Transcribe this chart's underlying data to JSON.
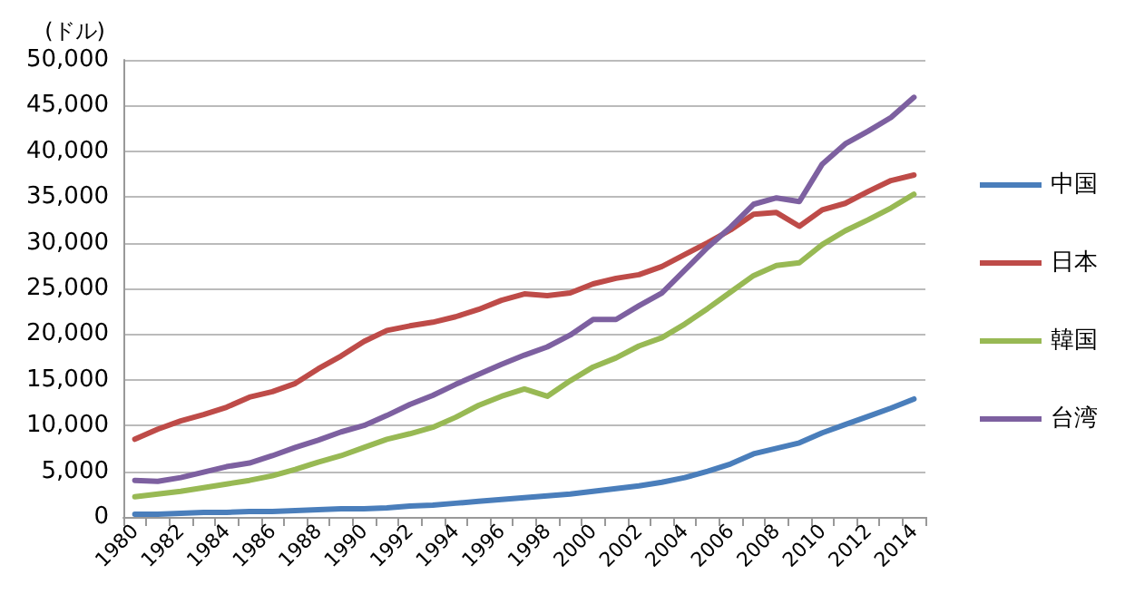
{
  "chart_data": {
    "type": "line",
    "ylabel": "(ドル)",
    "categories": [
      "1980",
      null,
      "1982",
      null,
      "1984",
      null,
      "1986",
      null,
      "1988",
      null,
      "1990",
      null,
      "1992",
      null,
      "1994",
      null,
      "1996",
      null,
      "1998",
      null,
      "2000",
      null,
      "2002",
      null,
      "2004",
      null,
      "2006",
      null,
      "2008",
      null,
      "2010",
      null,
      "2012",
      null,
      "2014"
    ],
    "series": [
      {
        "name": "中国",
        "color": "#4a7ebb",
        "values": [
          300,
          300,
          400,
          500,
          500,
          600,
          600,
          700,
          800,
          900,
          900,
          1000,
          1200,
          1300,
          1500,
          1700,
          1900,
          2100,
          2300,
          2500,
          2800,
          3100,
          3400,
          3800,
          4300,
          5000,
          5800,
          6900,
          7500,
          8100,
          9200,
          10100,
          11000,
          11900,
          12900
        ]
      },
      {
        "name": "日本",
        "color": "#be4b48",
        "values": [
          8500,
          9600,
          10500,
          11200,
          12000,
          13100,
          13700,
          14600,
          16200,
          17600,
          19200,
          20400,
          20900,
          21300,
          21900,
          22700,
          23700,
          24400,
          24200,
          24500,
          25500,
          26100,
          26500,
          27400,
          28700,
          30000,
          31400,
          33100,
          33300,
          31800,
          33600,
          34300,
          35600,
          36800,
          37400
        ]
      },
      {
        "name": "韓国",
        "color": "#98b954",
        "values": [
          2200,
          2500,
          2800,
          3200,
          3600,
          4000,
          4500,
          5200,
          6000,
          6700,
          7600,
          8500,
          9100,
          9800,
          10900,
          12200,
          13200,
          14000,
          13200,
          14900,
          16400,
          17400,
          18700,
          19600,
          21100,
          22800,
          24600,
          26400,
          27500,
          27800,
          29800,
          31300,
          32500,
          33800,
          35300
        ]
      },
      {
        "name": "台湾",
        "color": "#7d60a0",
        "values": [
          4000,
          3900,
          4300,
          4900,
          5500,
          5900,
          6700,
          7600,
          8400,
          9300,
          10000,
          11100,
          12300,
          13300,
          14500,
          15600,
          16700,
          17700,
          18600,
          19900,
          21600,
          21600,
          23100,
          24500,
          27000,
          29500,
          31700,
          34200,
          34900,
          34500,
          38600,
          40800,
          42200,
          43700,
          45900
        ]
      }
    ],
    "ylim": [
      0,
      50000
    ],
    "yticks": [
      0,
      {
        "value": 5000,
        "label": "5,000"
      },
      {
        "value": 10000,
        "label": "10,000"
      },
      {
        "value": 15000,
        "label": "15,000"
      },
      {
        "value": 20000,
        "label": "20,000"
      },
      {
        "value": 25000,
        "label": "25,000"
      },
      {
        "value": 30000,
        "label": "30,000"
      },
      {
        "value": 35000,
        "label": "35,000"
      },
      {
        "value": 40000,
        "label": "40,000"
      },
      {
        "value": 45000,
        "label": "45,000"
      },
      {
        "value": 50000,
        "label": "50,000"
      }
    ],
    "grid": "y",
    "legend": "right",
    "marker": "none",
    "line_style": "solid"
  }
}
